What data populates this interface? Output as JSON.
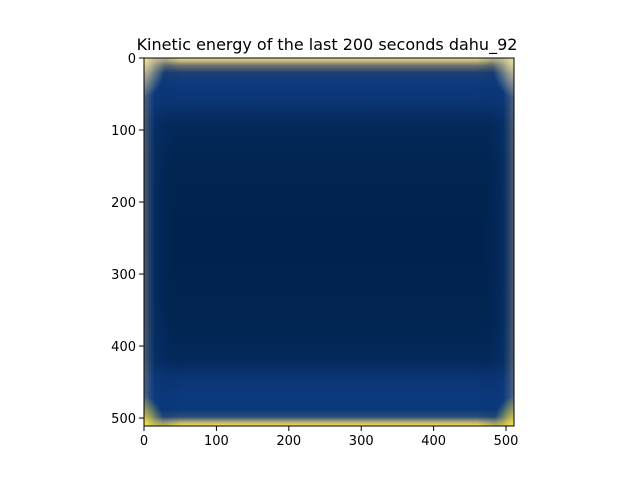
{
  "chart_data": {
    "type": "heatmap",
    "title": "Kinetic energy of the last 200 seconds dahu_92",
    "xlabel": "",
    "ylabel": "",
    "xlim": [
      0,
      511
    ],
    "ylim": [
      511,
      0
    ],
    "x_ticks": [
      0,
      100,
      200,
      300,
      400,
      500
    ],
    "y_ticks": [
      0,
      100,
      200,
      300,
      400,
      500
    ],
    "x_tick_labels": [
      "0",
      "100",
      "200",
      "300",
      "400",
      "500"
    ],
    "y_tick_labels": [
      "0",
      "100",
      "200",
      "300",
      "400",
      "500"
    ],
    "grid": false,
    "colormap": "cividis",
    "colors": {
      "low": "#00224e",
      "mid": "#0a3a80",
      "high": "#fde737"
    },
    "description_features": {
      "interior_level": 0.05,
      "top_band_rows": [
        0,
        90
      ],
      "bottom_band_rows": [
        420,
        511
      ],
      "bright_edges": [
        "bottom",
        "top-corners",
        "side-edges"
      ]
    }
  }
}
